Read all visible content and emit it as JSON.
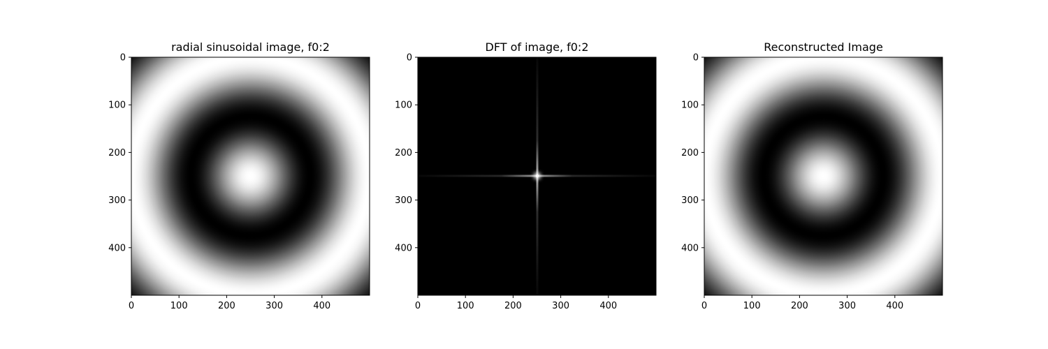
{
  "chart_data": [
    {
      "type": "heatmap",
      "title": "radial sinusoidal image, f0:2",
      "image": "radial sinusoid cos(2*pi*f0*r/N), f0 = 2, bright center, dark ring, bright ring, dark corners",
      "f0": 2,
      "size": 500,
      "colormap": "gray",
      "xlim": [
        0,
        500
      ],
      "ylim": [
        500,
        0
      ],
      "xticks": [
        0,
        100,
        200,
        300,
        400
      ],
      "yticks": [
        0,
        100,
        200,
        300,
        400
      ]
    },
    {
      "type": "heatmap",
      "title": "DFT of image, f0:2",
      "image": "centered DFT magnitude: bright peak at (250, 250) with faint horizontal and vertical streaks through the center, black elsewhere",
      "peak": [
        250,
        250
      ],
      "size": 500,
      "colormap": "gray",
      "xlim": [
        0,
        500
      ],
      "ylim": [
        500,
        0
      ],
      "xticks": [
        0,
        100,
        200,
        300,
        400
      ],
      "yticks": [
        0,
        100,
        200,
        300,
        400
      ]
    },
    {
      "type": "heatmap",
      "title": "Reconstructed Image",
      "image": "inverse DFT reconstruction, same radial sinusoid as the first panel",
      "f0": 2,
      "size": 500,
      "colormap": "gray",
      "xlim": [
        0,
        500
      ],
      "ylim": [
        500,
        0
      ],
      "xticks": [
        0,
        100,
        200,
        300,
        400
      ],
      "yticks": [
        0,
        100,
        200,
        300,
        400
      ]
    }
  ]
}
